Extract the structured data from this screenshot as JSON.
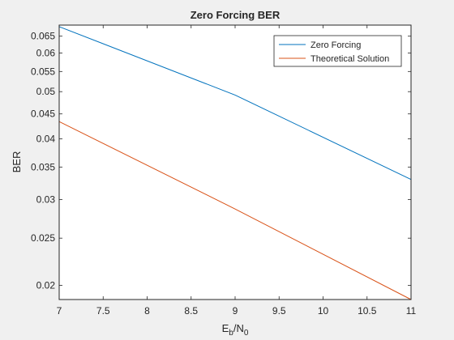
{
  "chart_data": {
    "type": "line",
    "title": "Zero Forcing BER",
    "xlabel_main": "E",
    "xlabel_sub1": "b",
    "xlabel_mid": "/N",
    "xlabel_sub2": "0",
    "ylabel": "BER",
    "xlim": [
      7,
      11
    ],
    "ylim": [
      0.0187,
      0.0685
    ],
    "yscale": "log",
    "xticks": [
      7,
      7.5,
      8,
      8.5,
      9,
      9.5,
      10,
      10.5,
      11
    ],
    "xtick_labels": [
      "7",
      "7.5",
      "8",
      "8.5",
      "9",
      "9.5",
      "10",
      "10.5",
      "11"
    ],
    "yticks": [
      0.02,
      0.025,
      0.03,
      0.035,
      0.04,
      0.045,
      0.05,
      0.055,
      0.06,
      0.065
    ],
    "ytick_labels": [
      "0.02",
      "0.025",
      "0.03",
      "0.035",
      "0.04",
      "0.045",
      "0.05",
      "0.055",
      "0.06",
      "0.065"
    ],
    "grid": false,
    "legend_position": "top-right",
    "series": [
      {
        "name": "Zero Forcing",
        "color": "#0072BD",
        "x": [
          7,
          9,
          11
        ],
        "y": [
          0.068,
          0.0492,
          0.033
        ]
      },
      {
        "name": "Theoretical Solution",
        "color": "#D95319",
        "x": [
          7,
          9,
          11
        ],
        "y": [
          0.0434,
          0.0287,
          0.0187
        ]
      }
    ]
  }
}
